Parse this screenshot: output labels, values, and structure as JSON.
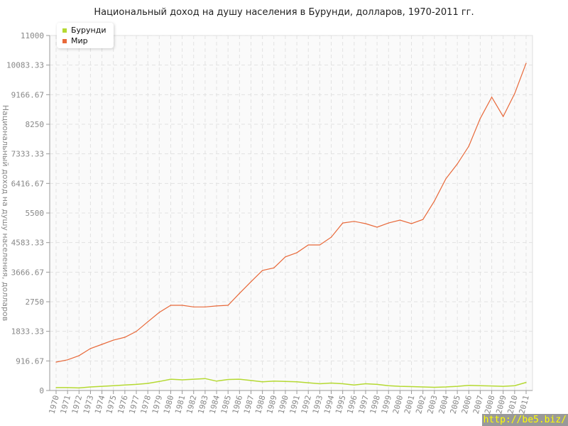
{
  "chart_data": {
    "type": "line",
    "title": "Национальный доход на душу населения в Бурунди, долларов, 1970-2011 гг.",
    "ylabel": "Национальный доход на душу населения, долларов",
    "xlabel": "",
    "ylim": [
      0,
      11000
    ],
    "yticks": [
      "0",
      "916.67",
      "1833.33",
      "2750",
      "3666.67",
      "4583.33",
      "5500",
      "6416.67",
      "7333.33",
      "8250",
      "9166.67",
      "10083.33",
      "11000"
    ],
    "grid": true,
    "legend_placement": "top-left",
    "x": [
      1970,
      1971,
      1972,
      1973,
      1974,
      1975,
      1976,
      1977,
      1978,
      1979,
      1980,
      1981,
      1982,
      1983,
      1984,
      1985,
      1986,
      1987,
      1988,
      1989,
      1990,
      1991,
      1992,
      1993,
      1994,
      1995,
      1996,
      1997,
      1998,
      1999,
      2000,
      2001,
      2002,
      2003,
      2004,
      2005,
      2006,
      2007,
      2008,
      2009,
      2010,
      2011
    ],
    "series": [
      {
        "name": "Бурунди",
        "color": "#b5d932",
        "values": [
          90,
          90,
          80,
          110,
          130,
          150,
          170,
          190,
          220,
          280,
          350,
          330,
          350,
          370,
          290,
          340,
          350,
          310,
          270,
          290,
          280,
          270,
          240,
          210,
          230,
          210,
          170,
          210,
          190,
          150,
          130,
          120,
          110,
          100,
          110,
          130,
          160,
          150,
          140,
          130,
          150,
          250
        ]
      },
      {
        "name": "Мир",
        "color": "#e8693a",
        "values": [
          880,
          950,
          1080,
          1300,
          1430,
          1560,
          1650,
          1830,
          2130,
          2420,
          2640,
          2640,
          2590,
          2590,
          2620,
          2640,
          3010,
          3370,
          3720,
          3800,
          4140,
          4270,
          4510,
          4510,
          4750,
          5190,
          5240,
          5170,
          5060,
          5190,
          5280,
          5170,
          5300,
          5870,
          6560,
          7020,
          7570,
          8430,
          9090,
          8490,
          9200,
          10140
        ]
      }
    ]
  },
  "watermark": "http://be5.biz/"
}
